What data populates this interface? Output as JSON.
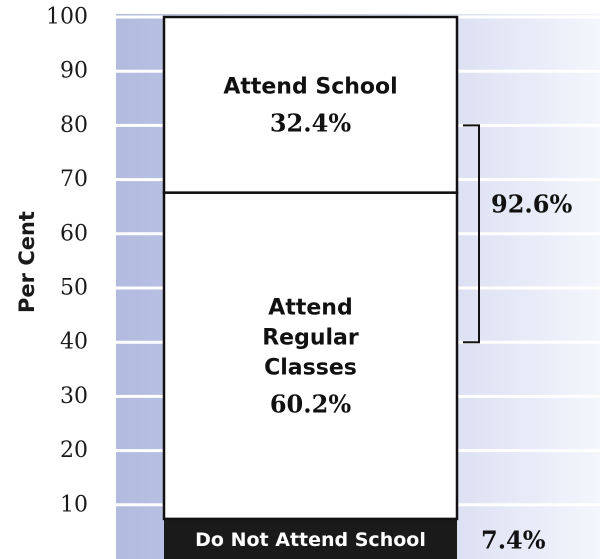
{
  "chart_data": {
    "type": "bar",
    "title": "",
    "xlabel": "",
    "ylabel": "Per Cent",
    "ylim": [
      0,
      100
    ],
    "yticks": [
      10,
      20,
      30,
      40,
      50,
      60,
      70,
      80,
      90,
      100
    ],
    "grid": true,
    "stacked": true,
    "segments": [
      {
        "label_lines": [
          "Do Not Attend School"
        ],
        "value": 7.4,
        "value_text": "7.4%",
        "color": "#1a1a1a"
      },
      {
        "label_lines": [
          "Attend",
          "Regular",
          "Classes"
        ],
        "value": 60.2,
        "value_text": "60.2%",
        "color": "#ffffff"
      },
      {
        "label_lines": [
          "Attend School"
        ],
        "value": 32.4,
        "value_text": "32.4%",
        "color": "#ffffff"
      }
    ],
    "bracket": {
      "from": 40,
      "to": 80,
      "value_text": "92.6%"
    },
    "colors": {
      "band": "#b6bfe0",
      "gridline": "#ffffff",
      "gradient_end": "#f4f6fc",
      "text": "#111111"
    }
  }
}
